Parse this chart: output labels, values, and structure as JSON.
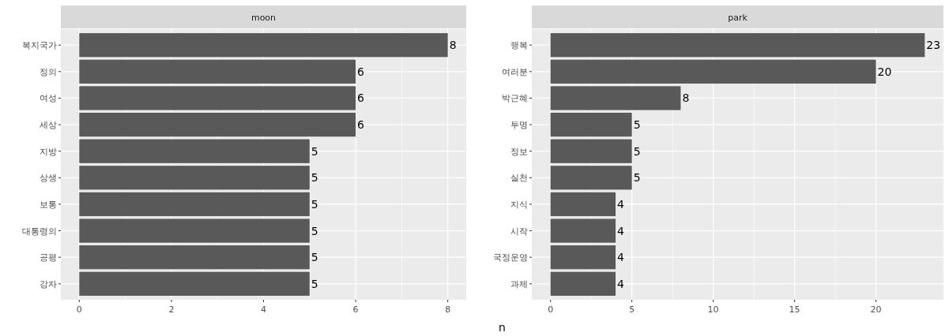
{
  "chart_data": [
    {
      "type": "bar",
      "orientation": "horizontal",
      "title": "moon",
      "categories": [
        "복지국가",
        "정의",
        "여성",
        "세상",
        "지방",
        "상생",
        "보통",
        "대통령의",
        "공평",
        "강자"
      ],
      "values": [
        8,
        6,
        6,
        6,
        5,
        5,
        5,
        5,
        5,
        5
      ],
      "color": "#595959",
      "data_labels": true,
      "xlim": [
        -0.4,
        8.4
      ],
      "xticks": [
        0,
        2,
        4,
        6,
        8
      ],
      "grid": true
    },
    {
      "type": "bar",
      "orientation": "horizontal",
      "title": "park",
      "xlabel": "n",
      "categories": [
        "행복",
        "여러분",
        "박근혜",
        "투명",
        "정보",
        "실천",
        "지식",
        "시작",
        "국정운영",
        "과제"
      ],
      "values": [
        23,
        20,
        8,
        5,
        5,
        5,
        4,
        4,
        4,
        4
      ],
      "color": "#595959",
      "data_labels": true,
      "xlim": [
        -1.15,
        24.15
      ],
      "xticks": [
        0,
        5,
        10,
        15,
        20
      ],
      "grid": true
    }
  ]
}
